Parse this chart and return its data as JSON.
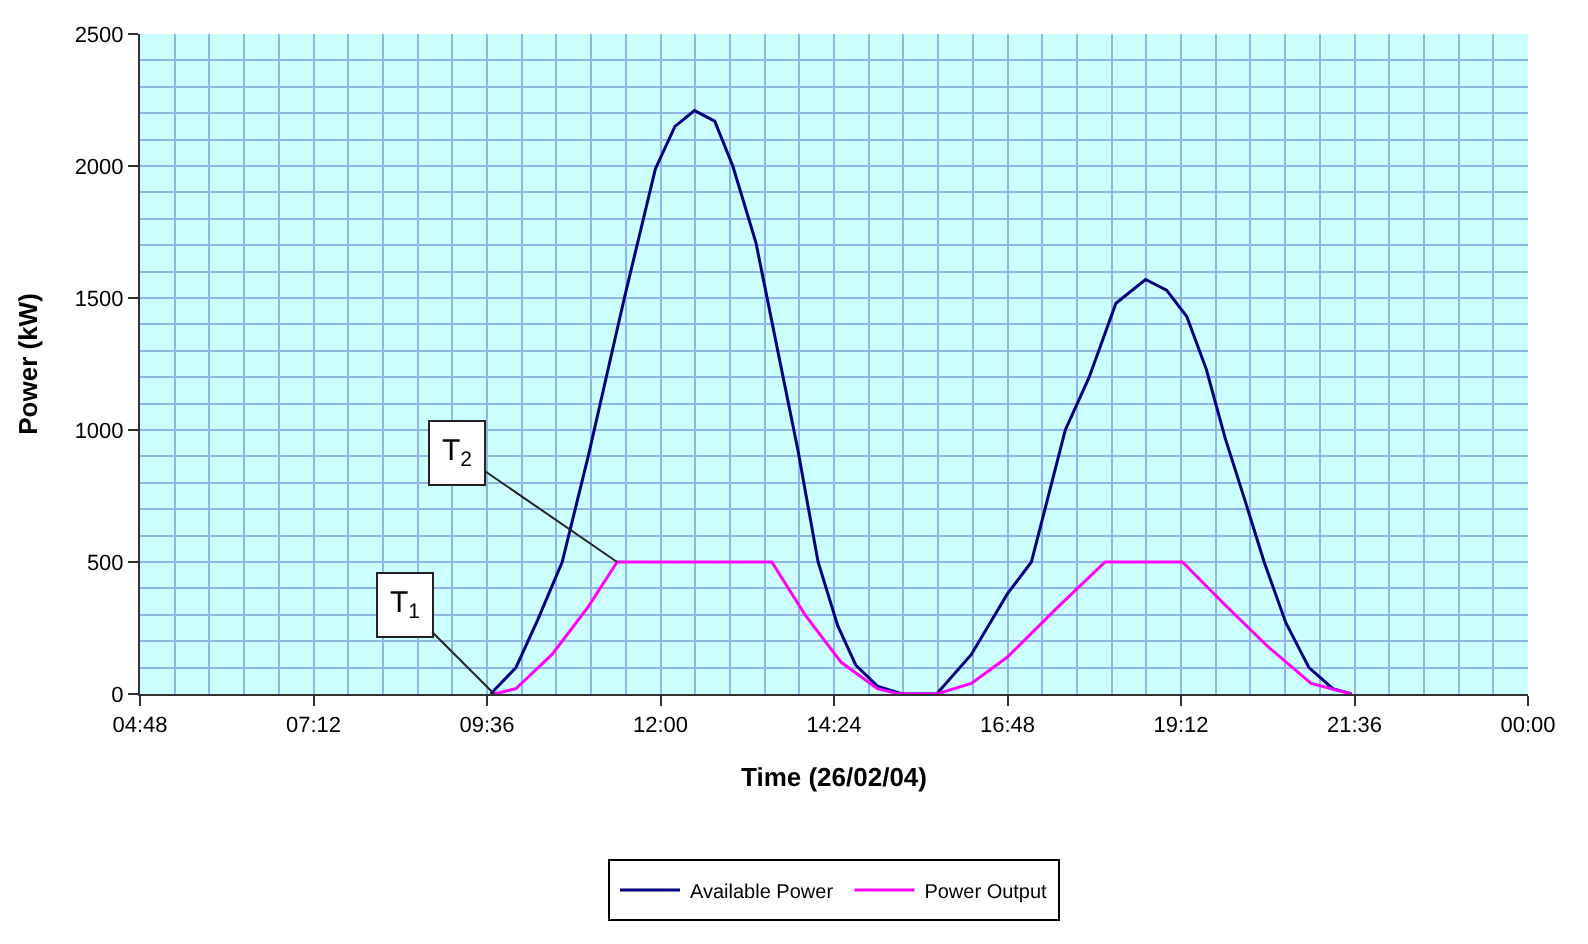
{
  "chart_data": {
    "type": "line",
    "xlabel": "Time (26/02/04)",
    "ylabel": "Power (kW)",
    "xlim": [
      4.8,
      24
    ],
    "xticks": [
      {
        "value": 4.8,
        "label": "04:48"
      },
      {
        "value": 7.2,
        "label": "07:12"
      },
      {
        "value": 9.6,
        "label": "09:36"
      },
      {
        "value": 12,
        "label": "12:00"
      },
      {
        "value": 14.4,
        "label": "14:24"
      },
      {
        "value": 16.8,
        "label": "16:48"
      },
      {
        "value": 19.2,
        "label": "19:12"
      },
      {
        "value": 21.6,
        "label": "21:36"
      },
      {
        "value": 24,
        "label": "00:00"
      }
    ],
    "ylim": [
      0,
      2500
    ],
    "yticks": [
      0,
      500,
      1000,
      1500,
      2000,
      2500
    ],
    "grid": true,
    "legend": "bottom",
    "line_style": "solid",
    "marker": "none",
    "series": [
      {
        "name": "Available Power",
        "color": "#000080",
        "x": [
          9.65,
          10.0,
          10.3,
          10.64,
          11.0,
          11.5,
          11.93,
          12.2,
          12.47,
          12.75,
          13.0,
          13.32,
          13.6,
          13.9,
          14.18,
          14.45,
          14.7,
          15.0,
          15.34,
          15.82,
          16.3,
          16.8,
          17.13,
          17.6,
          17.93,
          18.3,
          18.71,
          19.0,
          19.28,
          19.55,
          19.81,
          20.1,
          20.35,
          20.65,
          20.97,
          21.3,
          21.56
        ],
        "values": [
          0,
          100,
          280,
          500,
          900,
          1500,
          1990,
          2150,
          2210,
          2170,
          2000,
          1710,
          1330,
          925,
          500,
          260,
          110,
          30,
          0,
          0,
          150,
          380,
          500,
          1000,
          1200,
          1480,
          1570,
          1530,
          1430,
          1230,
          970,
          720,
          500,
          270,
          100,
          20,
          0
        ]
      },
      {
        "name": "Power Output",
        "color": "#ff00ff",
        "x": [
          9.7,
          10.0,
          10.5,
          11.0,
          11.4,
          13.54,
          14.0,
          14.5,
          15.0,
          15.3,
          15.82,
          16.3,
          16.8,
          17.5,
          18.15,
          19.22,
          19.8,
          20.4,
          21.0,
          21.56
        ],
        "values": [
          0,
          20,
          150,
          330,
          500,
          500,
          300,
          120,
          20,
          0,
          0,
          40,
          140,
          330,
          500,
          500,
          340,
          180,
          40,
          0
        ]
      }
    ],
    "annotations": [
      {
        "text": "T$_{1}$",
        "x": 9.7,
        "y": 0
      },
      {
        "text": "T$_{2}$",
        "x": 11.4,
        "y": 500
      }
    ]
  }
}
